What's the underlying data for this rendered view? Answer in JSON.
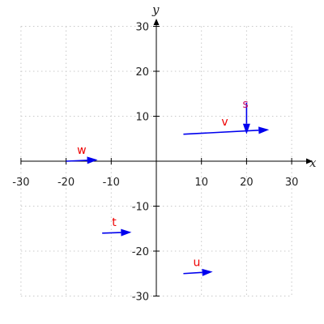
{
  "chart_data": {
    "type": "vector",
    "xlabel": "x",
    "ylabel": "y",
    "xlim": [
      -30,
      30
    ],
    "ylim": [
      -30,
      30
    ],
    "x_ticks": [
      -30,
      -20,
      -10,
      10,
      20,
      30
    ],
    "y_ticks": [
      -30,
      -20,
      -10,
      10,
      20,
      30
    ],
    "grid": true,
    "colors": {
      "vector": "#0000ee",
      "label": "#ee0000",
      "label_alt": "#cc1166",
      "grid": "#c8c8c8",
      "axis": "#000000"
    },
    "vectors": [
      {
        "label": "v",
        "start": [
          6,
          6
        ],
        "end": [
          25,
          7
        ]
      },
      {
        "label": "s",
        "start": [
          20,
          13
        ],
        "end": [
          20,
          6
        ]
      },
      {
        "label": "w",
        "start": [
          -20,
          0
        ],
        "end": [
          -13,
          0.3
        ]
      },
      {
        "label": "t",
        "start": [
          -12,
          -16
        ],
        "end": [
          -5.5,
          -15.8
        ]
      },
      {
        "label": "u",
        "start": [
          6,
          -25
        ],
        "end": [
          12.5,
          -24.6
        ]
      }
    ]
  }
}
